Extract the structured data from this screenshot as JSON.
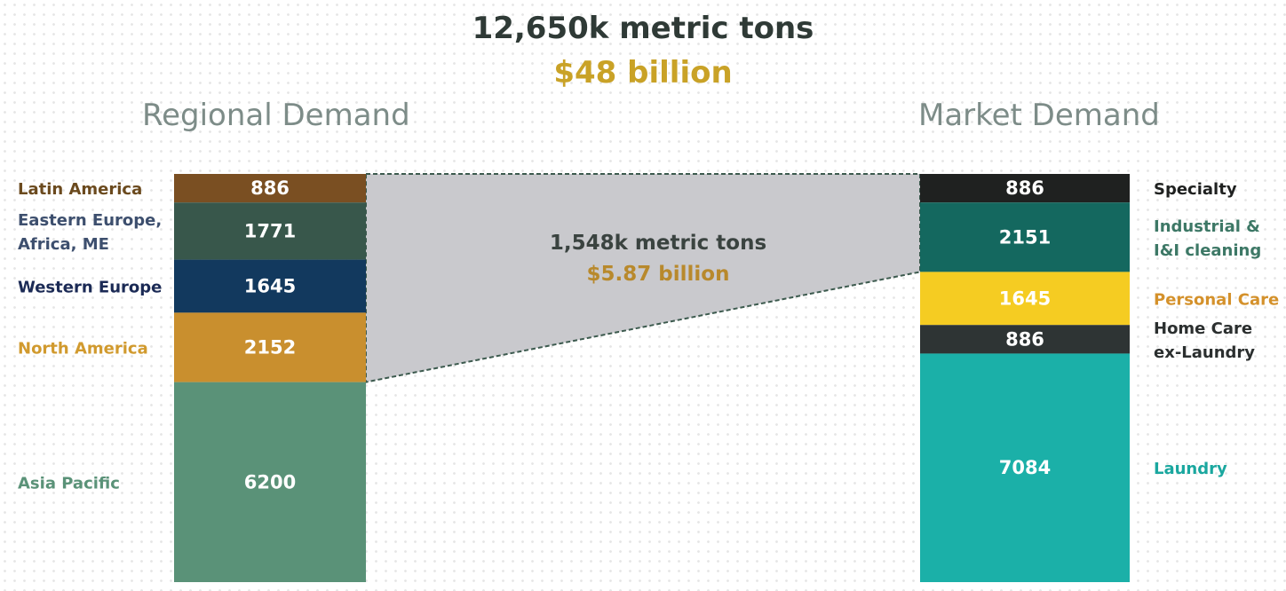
{
  "header": {
    "title": "12,650k metric tons",
    "subtitle": "$48 billion"
  },
  "chart_data": [
    {
      "type": "bar",
      "title": "Regional Demand",
      "series": [
        {
          "name": "Latin America",
          "lines": [
            "Latin America"
          ],
          "value": 886,
          "color": "#7a4f22",
          "label_color": "#6b4a1e"
        },
        {
          "name": "Eastern Europe, Africa, ME",
          "lines": [
            "Eastern Europe,",
            "Africa, ME"
          ],
          "value": 1771,
          "color": "#38574b",
          "label_color": "#3d4f6e"
        },
        {
          "name": "Western Europe",
          "lines": [
            "Western Europe"
          ],
          "value": 1645,
          "color": "#12395e",
          "label_color": "#1b2a55"
        },
        {
          "name": "North America",
          "lines": [
            "North America"
          ],
          "value": 2152,
          "color": "#c98f2e",
          "label_color": "#d19a2e"
        },
        {
          "name": "Asia Pacific",
          "lines": [
            "Asia Pacific"
          ],
          "value": 6200,
          "color": "#5a9278",
          "label_color": "#5a9278"
        }
      ]
    },
    {
      "type": "bar",
      "title": "Market Demand",
      "series": [
        {
          "name": "Specialty",
          "lines": [
            "Specialty"
          ],
          "value": 886,
          "color": "#1f2120",
          "label_color": "#1f2120"
        },
        {
          "name": "Industrial & I&I cleaning",
          "lines": [
            "Industrial &",
            "I&I cleaning"
          ],
          "value": 2151,
          "color": "#14685f",
          "label_color": "#3d7866"
        },
        {
          "name": "Personal Care",
          "lines": [
            "Personal Care"
          ],
          "value": 1645,
          "color": "#f5cc22",
          "label_color": "#d4912b"
        },
        {
          "name": "Home Care ex-Laundry",
          "lines": [
            "Home Care",
            "ex-Laundry"
          ],
          "value": 886,
          "color": "#2e3434",
          "label_color": "#2b2f2f"
        },
        {
          "name": "Laundry",
          "lines": [
            "Laundry"
          ],
          "value": 7084,
          "color": "#1bb0a8",
          "label_color": "#1aa79f"
        }
      ]
    }
  ],
  "callout": {
    "line1": "1,548k metric tons",
    "line2": "$5.87 billion",
    "fill": "#c9c9cd",
    "stroke": "#3c5a4e"
  }
}
